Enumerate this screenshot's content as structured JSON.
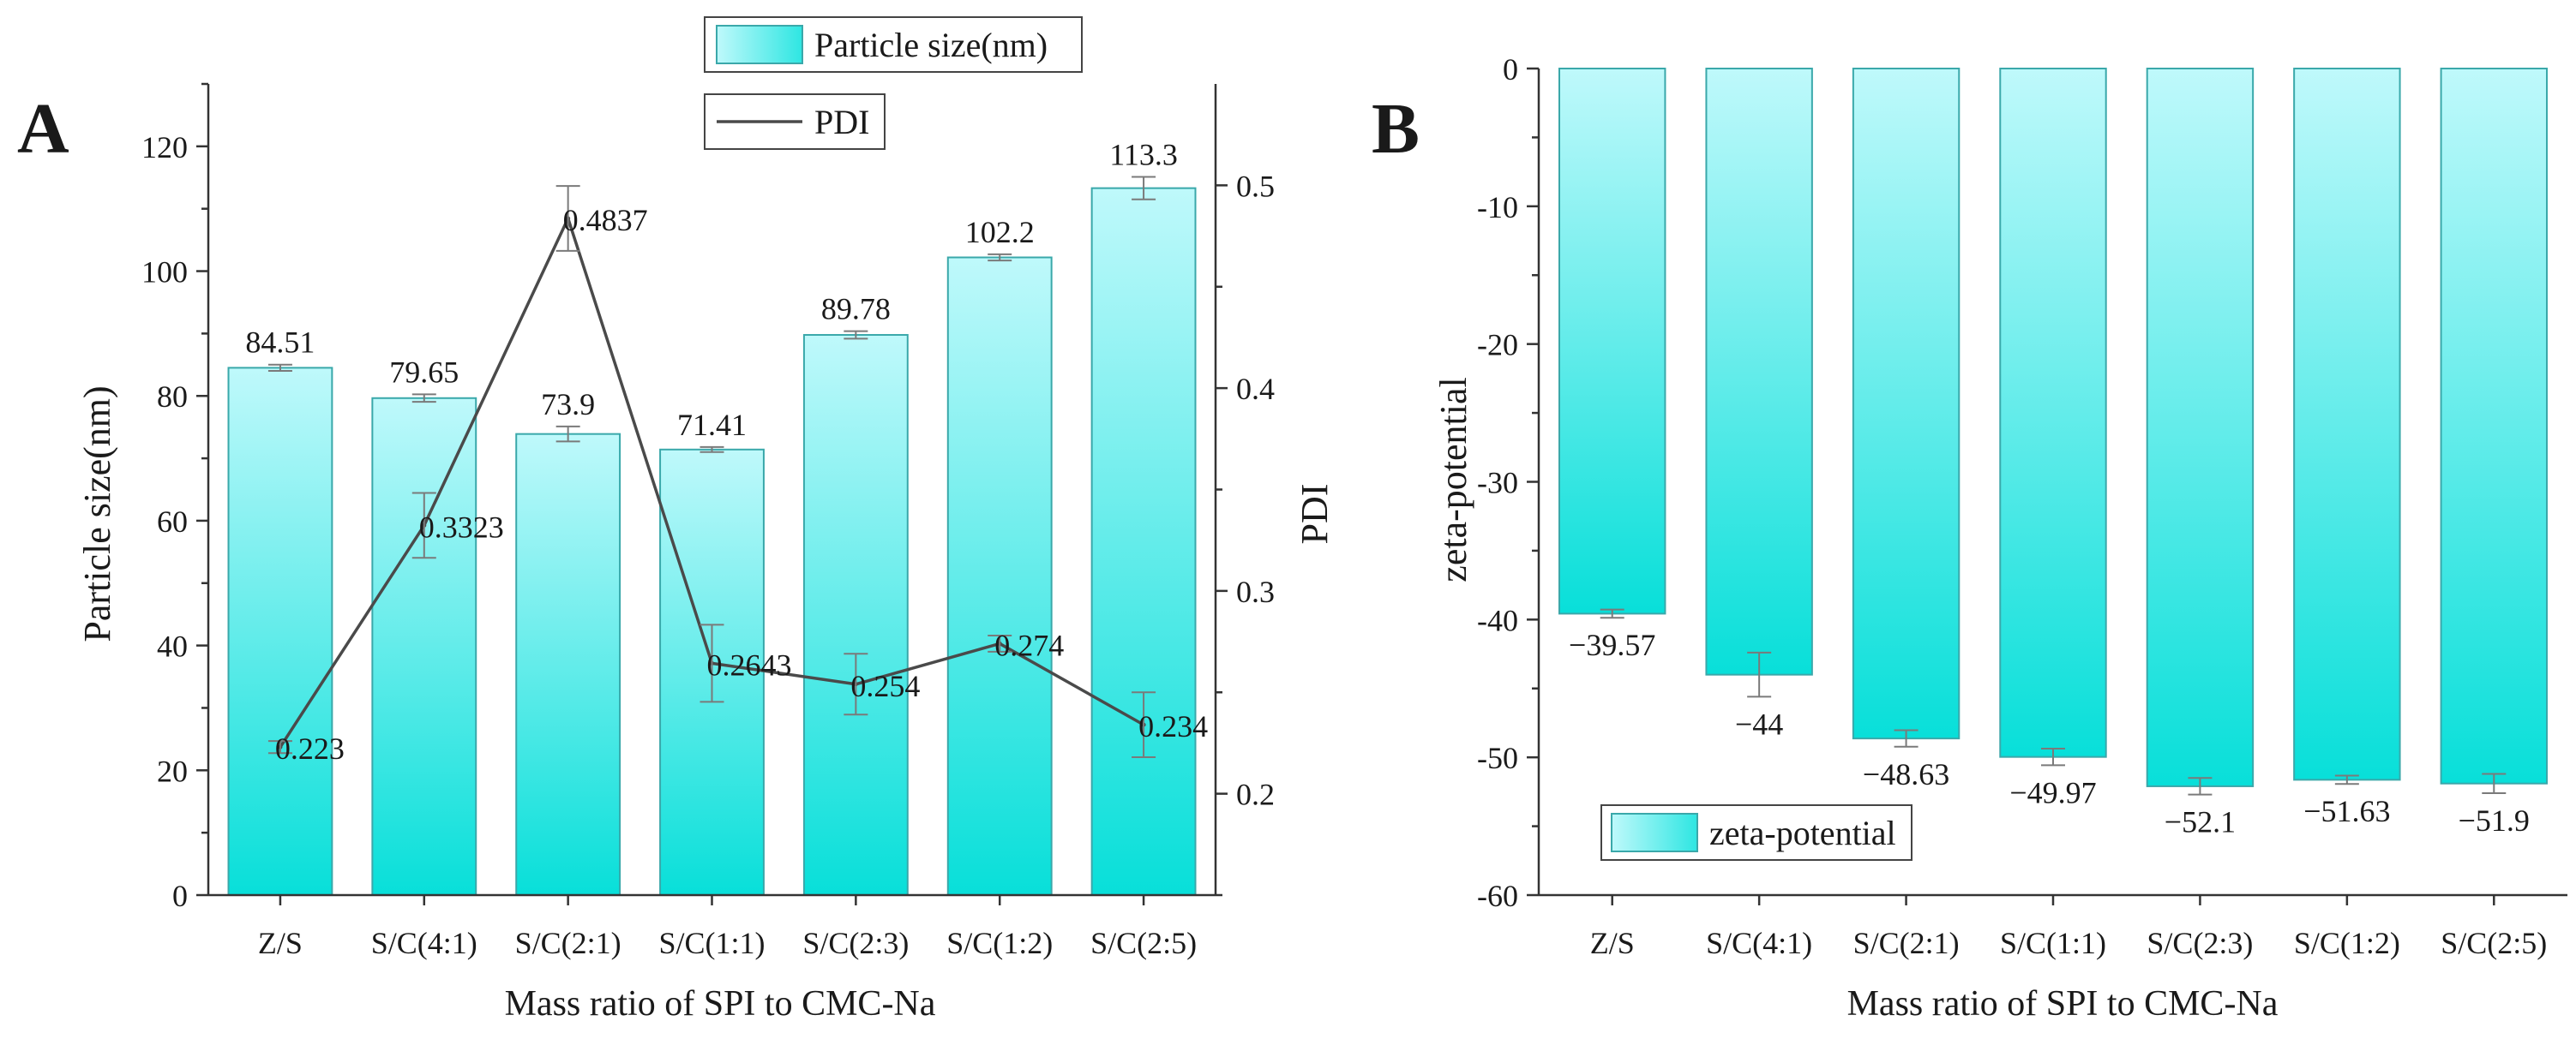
{
  "chart_data": [
    {
      "panel_label": "A",
      "type": "bar+line",
      "title": "",
      "xlabel": "Mass ratio of SPI to CMC-Na",
      "ylabel": "Particle size(nm)",
      "y2label": "PDI",
      "categories": [
        "Z/S",
        "S/C(4:1)",
        "S/C(2:1)",
        "S/C(1:1)",
        "S/C(2:3)",
        "S/C(1:2)",
        "S/C(2:5)"
      ],
      "ylim": [
        0,
        130
      ],
      "yticks": [
        0,
        20,
        40,
        60,
        80,
        100,
        120
      ],
      "y2lim": [
        0.15,
        0.55
      ],
      "y2ticks": [
        0.2,
        0.3,
        0.4,
        0.5
      ],
      "series": [
        {
          "name": "Particle size(nm)",
          "type": "bar",
          "axis": "left",
          "values": [
            84.51,
            79.65,
            73.9,
            71.41,
            89.78,
            102.2,
            113.3
          ],
          "labels": [
            "84.51",
            "79.65",
            "73.9",
            "71.41",
            "89.78",
            "102.2",
            "113.3"
          ],
          "errors": [
            0.5,
            0.6,
            1.2,
            0.4,
            0.6,
            0.5,
            1.8
          ]
        },
        {
          "name": "PDI",
          "type": "line",
          "axis": "right",
          "values": [
            0.223,
            0.3323,
            0.4837,
            0.2643,
            0.254,
            0.274,
            0.234
          ],
          "labels": [
            "0.223",
            "0.3323",
            "0.4837",
            "0.2643",
            "0.254",
            "0.274",
            "0.234"
          ],
          "errors": [
            0.003,
            0.016,
            0.016,
            0.019,
            0.015,
            0.004,
            0.016
          ]
        }
      ],
      "legend": [
        {
          "label": "Particle size(nm)",
          "swatch": "bar"
        },
        {
          "label": "PDI",
          "swatch": "line"
        }
      ],
      "legend_position": "top-center"
    },
    {
      "panel_label": "B",
      "type": "bar",
      "title": "",
      "xlabel": "Mass ratio of SPI to CMC-Na",
      "ylabel": "zeta-potential",
      "categories": [
        "Z/S",
        "S/C(4:1)",
        "S/C(2:1)",
        "S/C(1:1)",
        "S/C(2:3)",
        "S/C(1:2)",
        "S/C(2:5)"
      ],
      "ylim": [
        -60,
        0
      ],
      "yticks": [
        0,
        -10,
        -20,
        -30,
        -40,
        -50,
        -60
      ],
      "ytick_labels": [
        "0",
        "-10",
        "-20",
        "-30",
        "-40",
        "-50",
        "-60"
      ],
      "series": [
        {
          "name": "zeta-potential",
          "values": [
            -39.57,
            -44,
            -48.63,
            -49.97,
            -52.1,
            -51.63,
            -51.9
          ],
          "labels": [
            "−39.57",
            "−44",
            "−48.63",
            "−49.97",
            "−52.1",
            "−51.63",
            "−51.9"
          ],
          "errors": [
            0.3,
            1.6,
            0.6,
            0.6,
            0.6,
            0.3,
            0.7
          ]
        }
      ],
      "legend": [
        {
          "label": "zeta-potential",
          "swatch": "bar"
        }
      ],
      "legend_position": "bottom-left"
    }
  ],
  "colors": {
    "bar_top": "#bff9fb",
    "bar_bottom": "#08dfd9",
    "bar_edge": "#3aa8aa",
    "line": "#4a4a4a",
    "axis": "#333333",
    "error": "#7a7a7a",
    "text": "#1a1a1a"
  }
}
